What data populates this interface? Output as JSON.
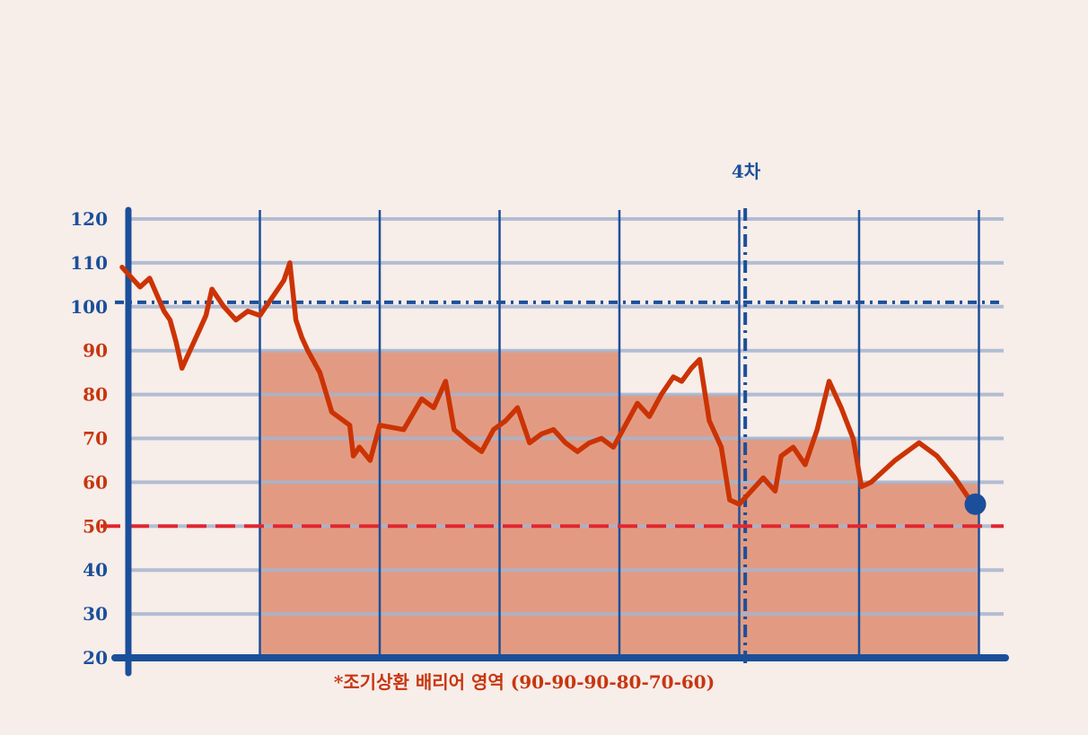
{
  "chart_data": {
    "type": "line",
    "ylim": [
      20,
      120
    ],
    "y_ticks": [
      "120",
      "110",
      "100",
      "90",
      "80",
      "70",
      "60",
      "50",
      "40",
      "30",
      "20"
    ],
    "y_tick_values": [
      120,
      110,
      100,
      90,
      80,
      70,
      60,
      50,
      40,
      30,
      20
    ],
    "x_range": [
      0,
      7.5
    ],
    "period_boundaries": [
      1,
      2,
      3,
      4,
      5,
      6,
      7
    ],
    "barrier_steps": [
      {
        "x_start": 1,
        "x_end": 4,
        "value": 90
      },
      {
        "x_start": 4,
        "x_end": 5,
        "value": 80
      },
      {
        "x_start": 5,
        "x_end": 6,
        "value": 70
      },
      {
        "x_start": 6,
        "x_end": 7,
        "value": 60
      }
    ],
    "reference_100": 101,
    "knock_in_level": 50,
    "marker_x": 5.05,
    "marker_label": "4차",
    "barrier_note": "*조기상환 배리어 영역 (90-90-90-80-70-60)",
    "series": [
      {
        "values": [
          [
            -0.15,
            109
          ],
          [
            0.0,
            104.5
          ],
          [
            0.08,
            106.5
          ],
          [
            0.2,
            99
          ],
          [
            0.25,
            97
          ],
          [
            0.3,
            92
          ],
          [
            0.35,
            86
          ],
          [
            0.45,
            92
          ],
          [
            0.5,
            95
          ],
          [
            0.55,
            98
          ],
          [
            0.6,
            104
          ],
          [
            0.7,
            100
          ],
          [
            0.8,
            97
          ],
          [
            0.9,
            99
          ],
          [
            1.0,
            98
          ],
          [
            1.1,
            102
          ],
          [
            1.2,
            106
          ],
          [
            1.25,
            110
          ],
          [
            1.3,
            97
          ],
          [
            1.35,
            93
          ],
          [
            1.4,
            90
          ],
          [
            1.5,
            85
          ],
          [
            1.6,
            76
          ],
          [
            1.75,
            73
          ],
          [
            1.78,
            66
          ],
          [
            1.83,
            68
          ],
          [
            1.92,
            65
          ],
          [
            2.0,
            73
          ],
          [
            2.2,
            72
          ],
          [
            2.35,
            79
          ],
          [
            2.45,
            77
          ],
          [
            2.55,
            83
          ],
          [
            2.62,
            72
          ],
          [
            2.75,
            69
          ],
          [
            2.85,
            67
          ],
          [
            2.95,
            72
          ],
          [
            3.05,
            74
          ],
          [
            3.15,
            77
          ],
          [
            3.25,
            69
          ],
          [
            3.35,
            71
          ],
          [
            3.45,
            72
          ],
          [
            3.55,
            69
          ],
          [
            3.65,
            67
          ],
          [
            3.75,
            69
          ],
          [
            3.85,
            70
          ],
          [
            3.95,
            68
          ],
          [
            4.05,
            73
          ],
          [
            4.15,
            78
          ],
          [
            4.25,
            75
          ],
          [
            4.35,
            80
          ],
          [
            4.45,
            84
          ],
          [
            4.52,
            83
          ],
          [
            4.6,
            86
          ],
          [
            4.67,
            88
          ],
          [
            4.75,
            74
          ],
          [
            4.85,
            68
          ],
          [
            4.92,
            56
          ],
          [
            5.0,
            55
          ],
          [
            5.1,
            58
          ],
          [
            5.2,
            61
          ],
          [
            5.3,
            58
          ],
          [
            5.35,
            66
          ],
          [
            5.45,
            68
          ],
          [
            5.55,
            64
          ],
          [
            5.65,
            72
          ],
          [
            5.75,
            83
          ],
          [
            5.85,
            77
          ],
          [
            5.95,
            70
          ],
          [
            6.02,
            59
          ],
          [
            6.1,
            60
          ],
          [
            6.3,
            65
          ],
          [
            6.5,
            69
          ],
          [
            6.65,
            66
          ],
          [
            6.8,
            61
          ],
          [
            6.95,
            55
          ]
        ],
        "color": "#cc3304"
      }
    ],
    "end_point": [
      6.97,
      55
    ],
    "colors": {
      "background": "#f7ede9",
      "axis_blue": "#1b4f9a",
      "grid_blue": "#a6b4ce",
      "fill_salmon": "#e29b82",
      "line_red": "#cc3304",
      "knock_in_red": "#e3262e",
      "label_red": "#c7360f"
    }
  }
}
